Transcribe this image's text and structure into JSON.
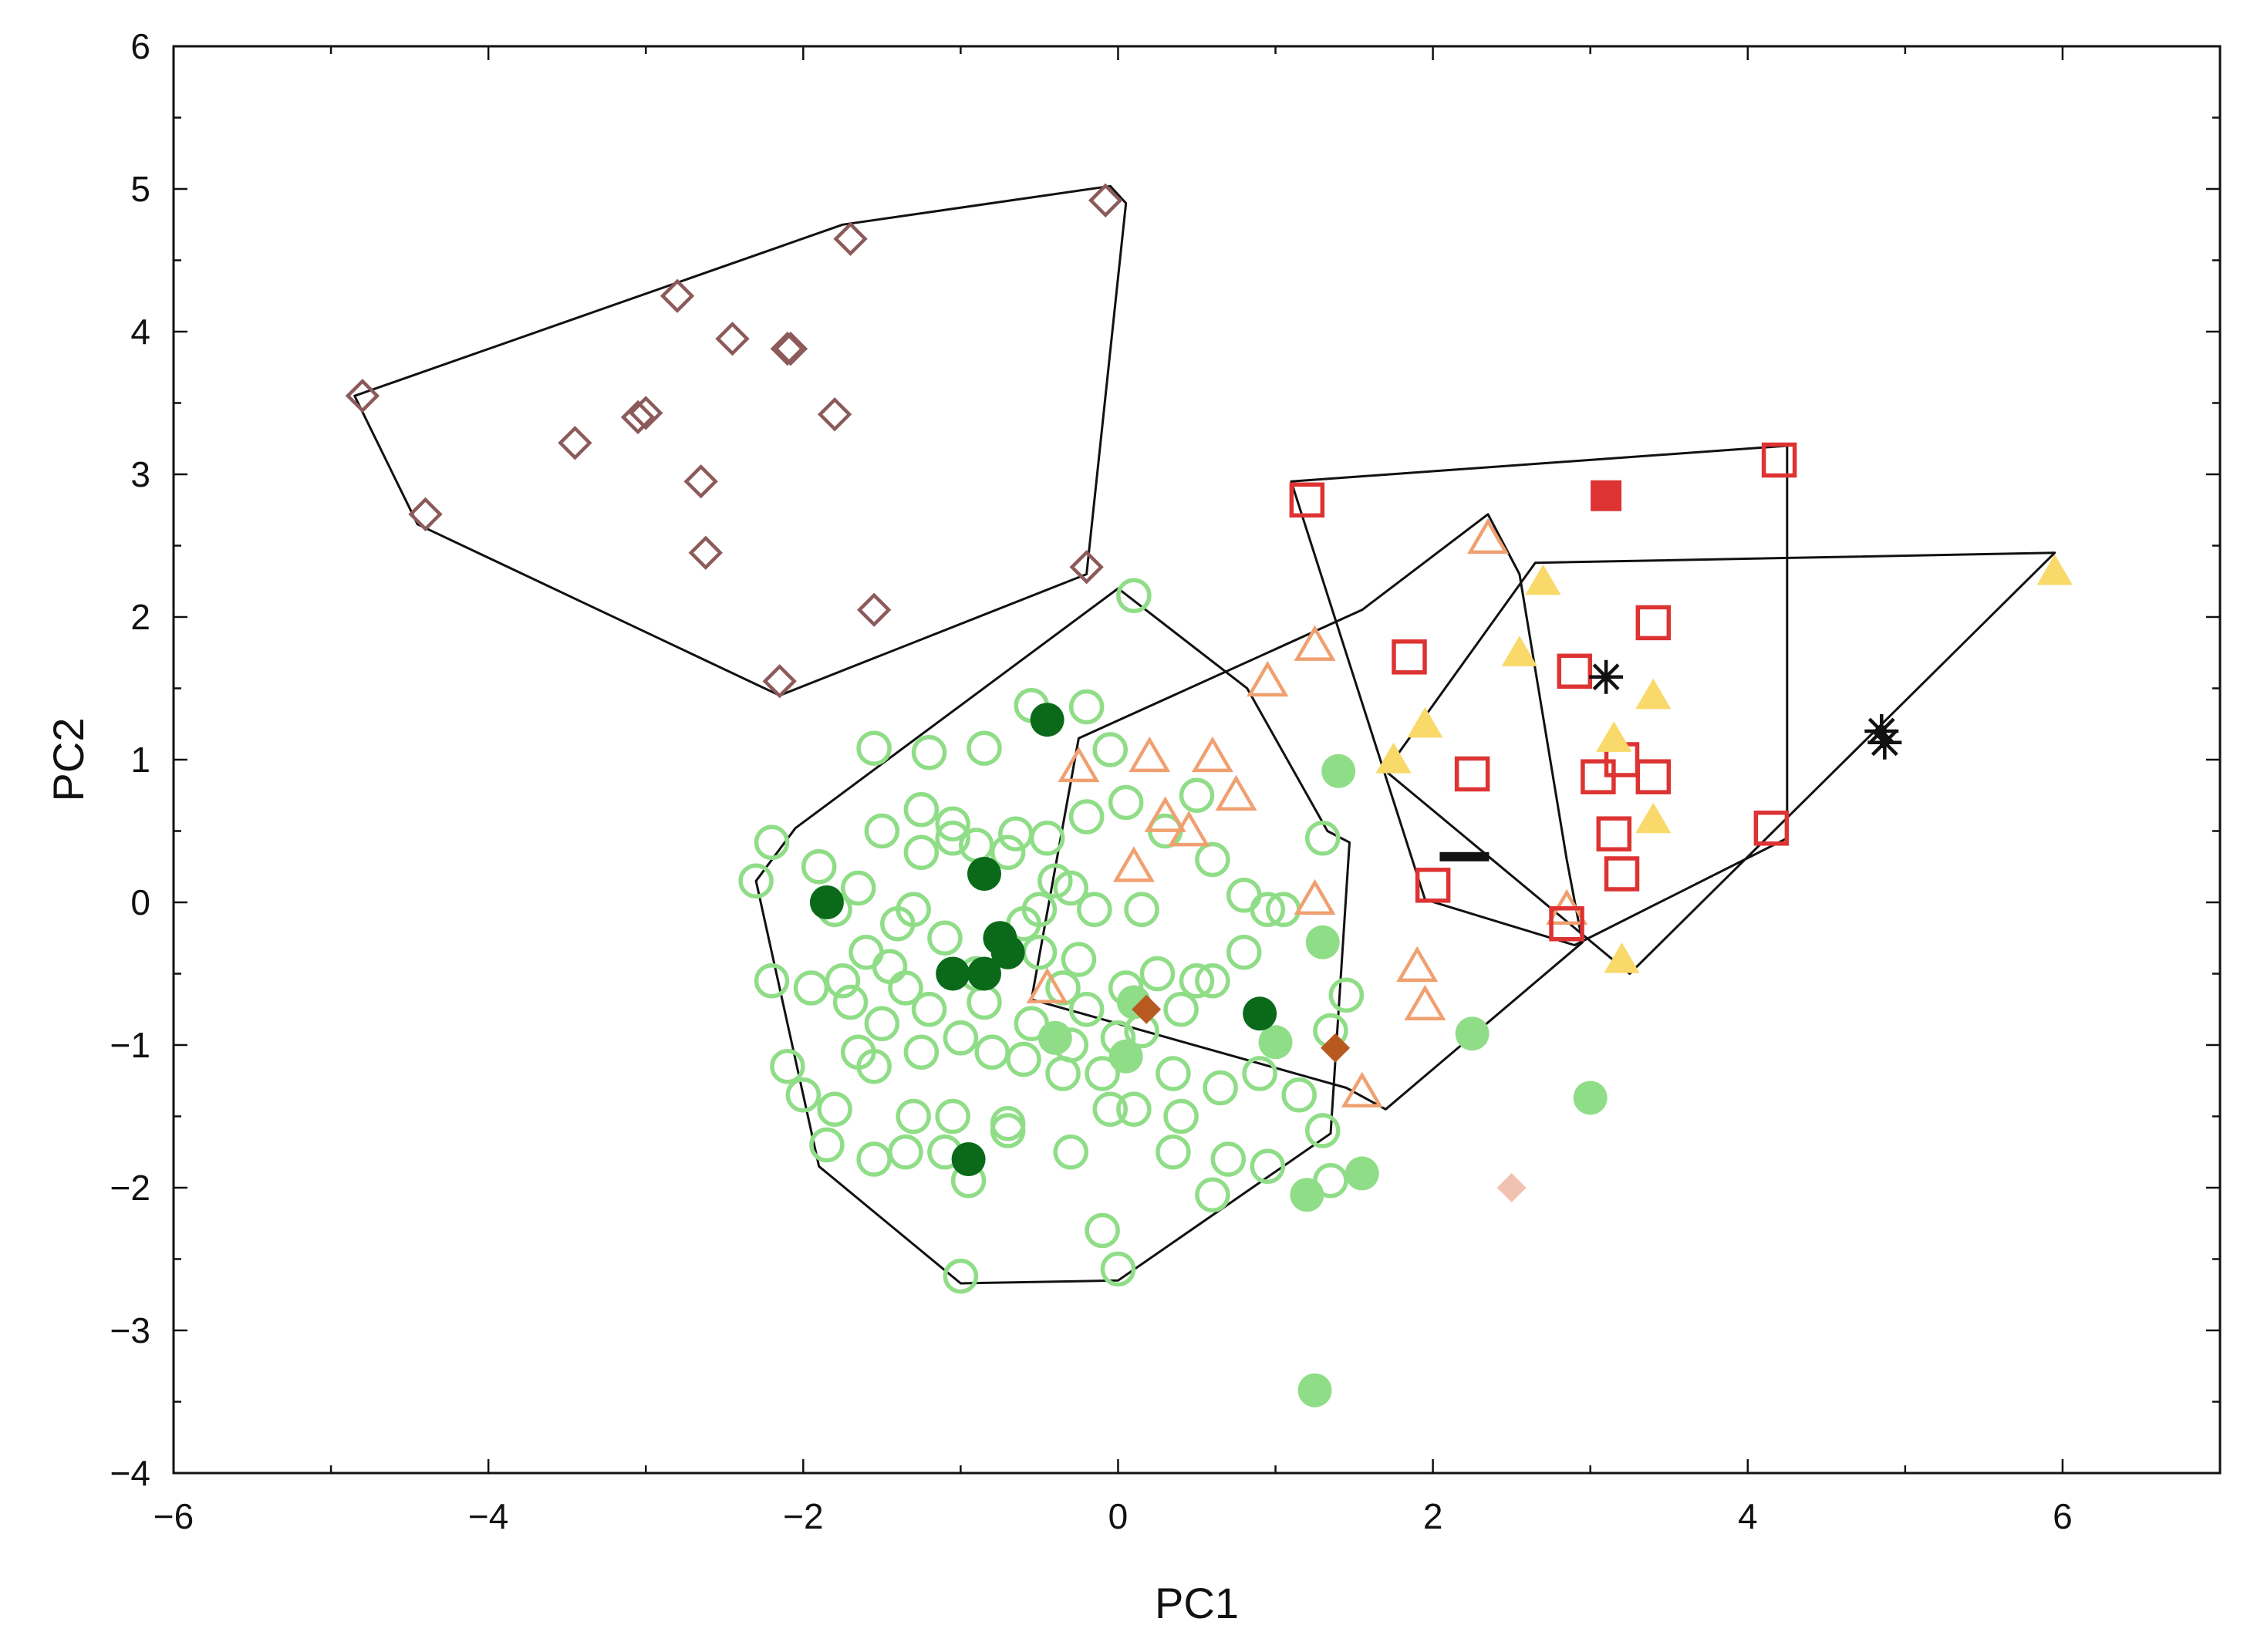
{
  "chart_data": {
    "type": "scatter",
    "title": "",
    "xlabel": "PC1",
    "ylabel": "PC2",
    "xlim": [
      -6,
      7
    ],
    "ylim": [
      -4,
      6
    ],
    "x_ticks": [
      -6,
      -4,
      -2,
      0,
      2,
      4,
      6
    ],
    "y_ticks": [
      -4,
      -3,
      -2,
      -1,
      0,
      1,
      2,
      3,
      4,
      5,
      6
    ],
    "x_tick_labels": [
      "−6",
      "−4",
      "−2",
      "0",
      "2",
      "4",
      "6"
    ],
    "y_tick_labels": [
      "−4",
      "−3",
      "−2",
      "−1",
      "0",
      "1",
      "2",
      "3",
      "4",
      "5",
      "6"
    ],
    "grid": false,
    "legend": "none",
    "series": [
      {
        "name": "group-brown-diamond-open",
        "marker": "diamond",
        "filled": false,
        "color": "#8c5a5a",
        "points": [
          [
            -4.8,
            3.55
          ],
          [
            -4.4,
            2.72
          ],
          [
            -3.45,
            3.22
          ],
          [
            -3.05,
            3.4
          ],
          [
            -3.0,
            3.43
          ],
          [
            -2.8,
            4.25
          ],
          [
            -2.45,
            3.95
          ],
          [
            -2.1,
            3.88
          ],
          [
            -2.08,
            3.88
          ],
          [
            -1.8,
            3.42
          ],
          [
            -1.7,
            4.65
          ],
          [
            -2.65,
            2.95
          ],
          [
            -2.62,
            2.45
          ],
          [
            -1.55,
            2.05
          ],
          [
            -2.15,
            1.55
          ],
          [
            -0.2,
            2.35
          ],
          [
            -0.08,
            4.92
          ]
        ]
      },
      {
        "name": "group-red-square-open",
        "marker": "square",
        "filled": false,
        "color": "#dd3333",
        "points": [
          [
            1.2,
            2.82
          ],
          [
            1.85,
            1.72
          ],
          [
            2.0,
            0.12
          ],
          [
            2.25,
            0.9
          ],
          [
            2.9,
            1.62
          ],
          [
            3.05,
            0.88
          ],
          [
            3.2,
            1.0
          ],
          [
            3.15,
            0.48
          ],
          [
            3.2,
            0.2
          ],
          [
            3.4,
            0.88
          ],
          [
            3.4,
            1.96
          ],
          [
            4.2,
            3.1
          ],
          [
            4.15,
            0.52
          ],
          [
            2.85,
            -0.15
          ]
        ]
      },
      {
        "name": "group-red-square-filled",
        "marker": "square",
        "filled": true,
        "color": "#dd3333",
        "points": [
          [
            3.1,
            2.85
          ]
        ]
      },
      {
        "name": "group-orange-triangle-open",
        "marker": "triangle",
        "filled": false,
        "color": "#f0a070",
        "points": [
          [
            -0.25,
            0.95
          ],
          [
            0.2,
            1.02
          ],
          [
            0.6,
            1.02
          ],
          [
            0.75,
            0.75
          ],
          [
            0.3,
            0.6
          ],
          [
            0.45,
            0.5
          ],
          [
            0.1,
            0.25
          ],
          [
            0.95,
            1.55
          ],
          [
            1.25,
            1.8
          ],
          [
            1.25,
            0.02
          ],
          [
            2.35,
            2.55
          ],
          [
            2.85,
            -0.05
          ],
          [
            1.9,
            -0.45
          ],
          [
            1.95,
            -0.72
          ],
          [
            1.55,
            -1.33
          ],
          [
            -0.45,
            -0.6
          ]
        ]
      },
      {
        "name": "group-yellow-triangle-filled",
        "marker": "triangle",
        "filled": true,
        "color": "#f8d96a",
        "points": [
          [
            2.7,
            2.25
          ],
          [
            2.55,
            1.75
          ],
          [
            1.95,
            1.25
          ],
          [
            1.75,
            1.0
          ],
          [
            3.15,
            1.15
          ],
          [
            3.4,
            1.45
          ],
          [
            3.4,
            0.58
          ],
          [
            3.2,
            -0.4
          ],
          [
            5.95,
            2.32
          ]
        ]
      },
      {
        "name": "group-green-circle-open",
        "marker": "circle",
        "filled": false,
        "color": "#90dd88",
        "points": [
          [
            -2.2,
            0.42
          ],
          [
            -2.3,
            0.15
          ],
          [
            -1.9,
            0.25
          ],
          [
            -1.5,
            0.5
          ],
          [
            -1.65,
            0.1
          ],
          [
            -1.25,
            0.35
          ],
          [
            -1.05,
            0.55
          ],
          [
            -0.9,
            0.4
          ],
          [
            -0.7,
            0.35
          ],
          [
            -0.45,
            0.45
          ],
          [
            -0.2,
            0.6
          ],
          [
            0.05,
            0.7
          ],
          [
            0.3,
            0.5
          ],
          [
            0.5,
            0.75
          ],
          [
            0.6,
            0.3
          ],
          [
            0.8,
            0.05
          ],
          [
            0.95,
            -0.05
          ],
          [
            0.15,
            -0.05
          ],
          [
            -0.3,
            0.1
          ],
          [
            -0.5,
            -0.05
          ],
          [
            -1.1,
            -0.25
          ],
          [
            -1.4,
            -0.15
          ],
          [
            -1.6,
            -0.35
          ],
          [
            -1.8,
            -0.05
          ],
          [
            -2.2,
            -0.55
          ],
          [
            -1.95,
            -0.6
          ],
          [
            -1.7,
            -0.7
          ],
          [
            -1.5,
            -0.85
          ],
          [
            -1.2,
            -0.75
          ],
          [
            -1.0,
            -0.95
          ],
          [
            -0.8,
            -1.05
          ],
          [
            -0.6,
            -1.1
          ],
          [
            -0.3,
            -1.0
          ],
          [
            -0.1,
            -1.2
          ],
          [
            0.15,
            -0.9
          ],
          [
            0.4,
            -0.75
          ],
          [
            0.6,
            -0.55
          ],
          [
            0.8,
            -0.35
          ],
          [
            1.05,
            -0.05
          ],
          [
            1.45,
            -0.65
          ],
          [
            1.35,
            -0.9
          ],
          [
            0.1,
            -1.45
          ],
          [
            0.4,
            -1.5
          ],
          [
            0.7,
            -1.8
          ],
          [
            0.95,
            -1.85
          ],
          [
            0.6,
            -2.05
          ],
          [
            0.35,
            -1.75
          ],
          [
            -0.05,
            -1.45
          ],
          [
            -0.35,
            -1.2
          ],
          [
            -0.7,
            -1.55
          ],
          [
            -1.05,
            -1.5
          ],
          [
            -1.3,
            -1.5
          ],
          [
            -1.55,
            -1.8
          ],
          [
            -1.35,
            -1.75
          ],
          [
            -1.1,
            -1.75
          ],
          [
            -0.95,
            -1.95
          ],
          [
            -0.7,
            -1.6
          ],
          [
            -0.3,
            -1.75
          ],
          [
            -1.85,
            -1.7
          ],
          [
            -1.65,
            -1.05
          ],
          [
            -1.55,
            -1.15
          ],
          [
            -1.35,
            -0.6
          ],
          [
            -0.9,
            -0.5
          ],
          [
            -0.5,
            -0.35
          ],
          [
            -0.25,
            -0.4
          ],
          [
            0.05,
            -0.6
          ],
          [
            0.25,
            -0.5
          ],
          [
            0.5,
            -0.55
          ],
          [
            -0.1,
            -2.3
          ],
          [
            0.0,
            -2.57
          ],
          [
            -1.0,
            -2.62
          ],
          [
            0.1,
            2.15
          ],
          [
            -0.55,
            1.38
          ],
          [
            -0.2,
            1.37
          ],
          [
            -0.05,
            1.07
          ],
          [
            -0.85,
            1.08
          ],
          [
            -1.2,
            1.05
          ],
          [
            -1.55,
            1.08
          ],
          [
            -1.25,
            0.65
          ],
          [
            -1.05,
            0.45
          ],
          [
            -0.65,
            0.48
          ],
          [
            -0.4,
            0.15
          ],
          [
            -0.15,
            -0.05
          ],
          [
            -0.6,
            -0.15
          ],
          [
            -1.3,
            -0.05
          ],
          [
            -1.45,
            -0.45
          ],
          [
            -1.75,
            -0.55
          ],
          [
            -1.25,
            -1.05
          ],
          [
            -0.85,
            -0.7
          ],
          [
            -0.55,
            -0.85
          ],
          [
            -0.2,
            -0.75
          ],
          [
            0.0,
            -0.95
          ],
          [
            0.35,
            -1.2
          ],
          [
            0.65,
            -1.3
          ],
          [
            0.9,
            -1.2
          ],
          [
            1.15,
            -1.35
          ],
          [
            1.3,
            -1.6
          ],
          [
            1.35,
            -1.95
          ],
          [
            1.3,
            0.45
          ],
          [
            -2.1,
            -1.15
          ],
          [
            -2.0,
            -1.35
          ],
          [
            -1.8,
            -1.45
          ],
          [
            -0.35,
            -0.6
          ]
        ]
      },
      {
        "name": "group-green-circle-lightfill",
        "marker": "circle",
        "filled": true,
        "color": "#90dd88",
        "points": [
          [
            1.4,
            0.92
          ],
          [
            1.3,
            -0.28
          ],
          [
            1.0,
            -0.98
          ],
          [
            0.1,
            -0.7
          ],
          [
            -0.4,
            -0.95
          ],
          [
            0.05,
            -1.08
          ],
          [
            2.25,
            -0.92
          ],
          [
            3.0,
            -1.37
          ],
          [
            1.55,
            -1.9
          ],
          [
            1.2,
            -2.05
          ],
          [
            1.25,
            -3.42
          ]
        ]
      },
      {
        "name": "group-green-circle-darkfill",
        "marker": "circle",
        "filled": true,
        "color": "#0a6a1a",
        "points": [
          [
            -1.85,
            0.0
          ],
          [
            -0.45,
            1.28
          ],
          [
            -0.85,
            0.2
          ],
          [
            -0.75,
            -0.25
          ],
          [
            -0.7,
            -0.35
          ],
          [
            -1.05,
            -0.5
          ],
          [
            -0.85,
            -0.5
          ],
          [
            0.9,
            -0.78
          ],
          [
            -0.95,
            -1.8
          ]
        ]
      },
      {
        "name": "group-dark-orange-diamond",
        "marker": "diamond",
        "filled": true,
        "color": "#b85a20",
        "points": [
          [
            1.38,
            -1.02
          ],
          [
            0.18,
            -0.75
          ]
        ]
      },
      {
        "name": "group-pale-diamond",
        "marker": "diamond",
        "filled": true,
        "color": "#f2c2b0",
        "points": [
          [
            2.5,
            -2.0
          ]
        ]
      },
      {
        "name": "group-asterisk",
        "marker": "asterisk",
        "filled": false,
        "color": "#111111",
        "points": [
          [
            3.1,
            1.58
          ],
          [
            4.85,
            1.2
          ],
          [
            4.87,
            1.12
          ]
        ]
      },
      {
        "name": "group-dash",
        "marker": "dash",
        "filled": true,
        "color": "#111111",
        "points": [
          [
            2.2,
            0.32
          ]
        ]
      }
    ],
    "hulls": [
      {
        "name": "hull-brown",
        "points": [
          [
            -4.85,
            3.55
          ],
          [
            -4.45,
            2.65
          ],
          [
            -2.15,
            1.45
          ],
          [
            -0.2,
            2.3
          ],
          [
            0.05,
            4.9
          ],
          [
            -0.05,
            5.02
          ],
          [
            -1.75,
            4.75
          ]
        ]
      },
      {
        "name": "hull-green",
        "points": [
          [
            -2.3,
            0.15
          ],
          [
            -2.05,
            0.52
          ],
          [
            0.0,
            2.2
          ],
          [
            0.82,
            1.5
          ],
          [
            1.33,
            0.5
          ],
          [
            1.47,
            0.42
          ],
          [
            1.35,
            -1.62
          ],
          [
            0.0,
            -2.65
          ],
          [
            -1.0,
            -2.67
          ],
          [
            -1.9,
            -1.85
          ]
        ]
      },
      {
        "name": "hull-orange",
        "points": [
          [
            -0.55,
            -0.68
          ],
          [
            -0.25,
            1.15
          ],
          [
            1.55,
            2.05
          ],
          [
            2.35,
            2.72
          ],
          [
            2.55,
            2.3
          ],
          [
            2.85,
            0.3
          ],
          [
            2.95,
            -0.28
          ],
          [
            1.7,
            -1.45
          ],
          [
            1.45,
            -1.3
          ]
        ]
      },
      {
        "name": "hull-red",
        "points": [
          [
            1.1,
            2.95
          ],
          [
            4.25,
            3.2
          ],
          [
            4.25,
            0.45
          ],
          [
            2.9,
            -0.3
          ],
          [
            1.95,
            0.02
          ]
        ]
      },
      {
        "name": "hull-yellow",
        "points": [
          [
            1.7,
            0.92
          ],
          [
            2.65,
            2.38
          ],
          [
            5.95,
            2.45
          ],
          [
            3.25,
            -0.5
          ]
        ]
      }
    ]
  }
}
